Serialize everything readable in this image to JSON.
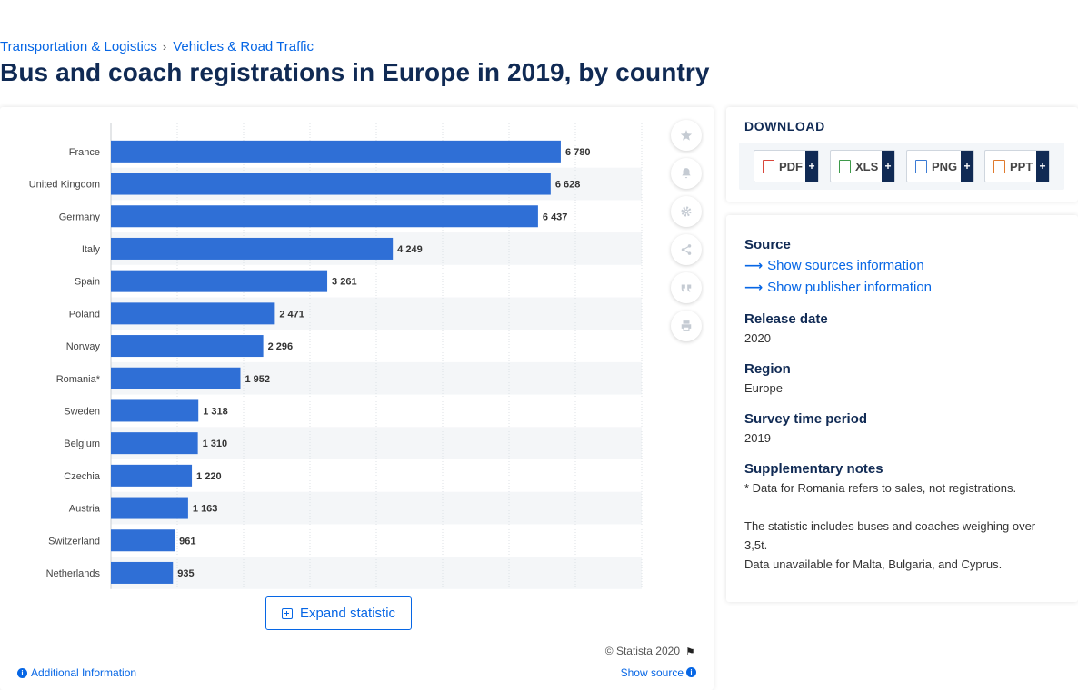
{
  "breadcrumb": {
    "items": [
      "Transportation & Logistics",
      "Vehicles & Road Traffic"
    ],
    "separator": "›"
  },
  "page_title": "Bus and coach registrations in Europe in 2019, by country",
  "chart_data": {
    "type": "bar",
    "orientation": "horizontal",
    "categories": [
      "France",
      "United Kingdom",
      "Germany",
      "Italy",
      "Spain",
      "Poland",
      "Norway",
      "Romania*",
      "Sweden",
      "Belgium",
      "Czechia",
      "Austria",
      "Switzerland",
      "Netherlands"
    ],
    "values": [
      6780,
      6628,
      6437,
      4249,
      3261,
      2471,
      2296,
      1952,
      1318,
      1310,
      1220,
      1163,
      961,
      935
    ],
    "value_labels": [
      "6 780",
      "6 628",
      "6 437",
      "4 249",
      "3 261",
      "2 471",
      "2 296",
      "1 952",
      "1 318",
      "1 310",
      "1 220",
      "1 163",
      "961",
      "935"
    ],
    "xlim": [
      0,
      8000
    ],
    "grid": true,
    "bar_color": "#2f6fd6",
    "title": "",
    "xlabel": "",
    "ylabel": ""
  },
  "chart_tools": {
    "icons": [
      "star-icon",
      "bell-icon",
      "gear-icon",
      "share-icon",
      "quote-icon",
      "print-icon"
    ]
  },
  "expand_button": {
    "label": "Expand statistic"
  },
  "footer": {
    "copyright": "© Statista 2020",
    "additional_info": "Additional Information",
    "show_source": "Show source"
  },
  "download": {
    "title": "DOWNLOAD",
    "formats": [
      {
        "label": "PDF",
        "color": "#d9463b"
      },
      {
        "label": "XLS",
        "color": "#3e9a4a"
      },
      {
        "label": "PNG",
        "color": "#3b7bd4"
      },
      {
        "label": "PPT",
        "color": "#e07a2d"
      }
    ],
    "plus": "+"
  },
  "meta": {
    "source": {
      "heading": "Source",
      "link_sources": "Show sources information",
      "link_publisher": "Show publisher information"
    },
    "release_date": {
      "heading": "Release date",
      "value": "2020"
    },
    "region": {
      "heading": "Region",
      "value": "Europe"
    },
    "survey_period": {
      "heading": "Survey time period",
      "value": "2019"
    },
    "notes": {
      "heading": "Supplementary notes",
      "line1": "* Data for Romania refers to sales, not registrations.",
      "line2": "The statistic includes buses and coaches weighing over 3,5t.",
      "line3": "Data unavailable for Malta, Bulgaria, and Cyprus."
    }
  }
}
